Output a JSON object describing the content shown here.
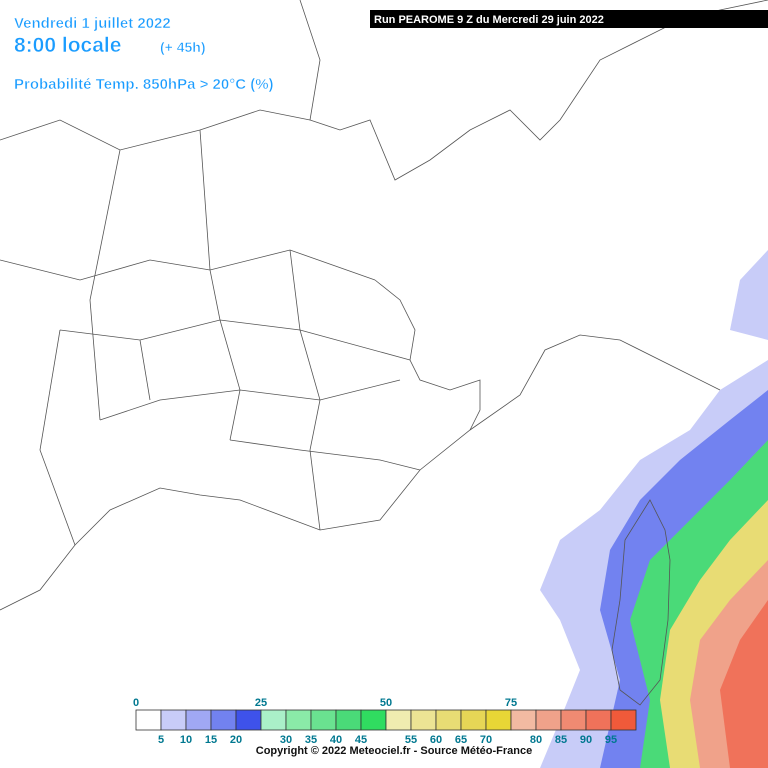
{
  "header": {
    "date": "Vendredi 1 juillet 2022",
    "time": "8:00 locale",
    "lead": "(+ 45h)",
    "parameter": "Probabilité Temp. 850hPa > 20°C (%)",
    "run": "Run PEAROME 9 Z du Mercredi 29 juin 2022"
  },
  "legend": {
    "top_labels": [
      "0",
      "25",
      "50",
      "75"
    ],
    "bottom_labels": [
      "5",
      "10",
      "15",
      "20",
      "30",
      "35",
      "40",
      "45",
      "55",
      "60",
      "65",
      "70",
      "80",
      "85",
      "90",
      "95"
    ],
    "colors": [
      "#ffffff",
      "#c8ccf8",
      "#a0a8f4",
      "#7282f0",
      "#3e52ea",
      "#aaf0c8",
      "#8aeaa8",
      "#6ae290",
      "#4ada78",
      "#30dc60",
      "#f0ecb0",
      "#ece494",
      "#e8dc74",
      "#e6d656",
      "#e8d636",
      "#f2baa2",
      "#f0a28a",
      "#f08a72",
      "#f0725a",
      "#f05a3a"
    ]
  },
  "footer": {
    "copyright": "Copyright © 2022 Meteociel.fr - Source Météo-France"
  }
}
